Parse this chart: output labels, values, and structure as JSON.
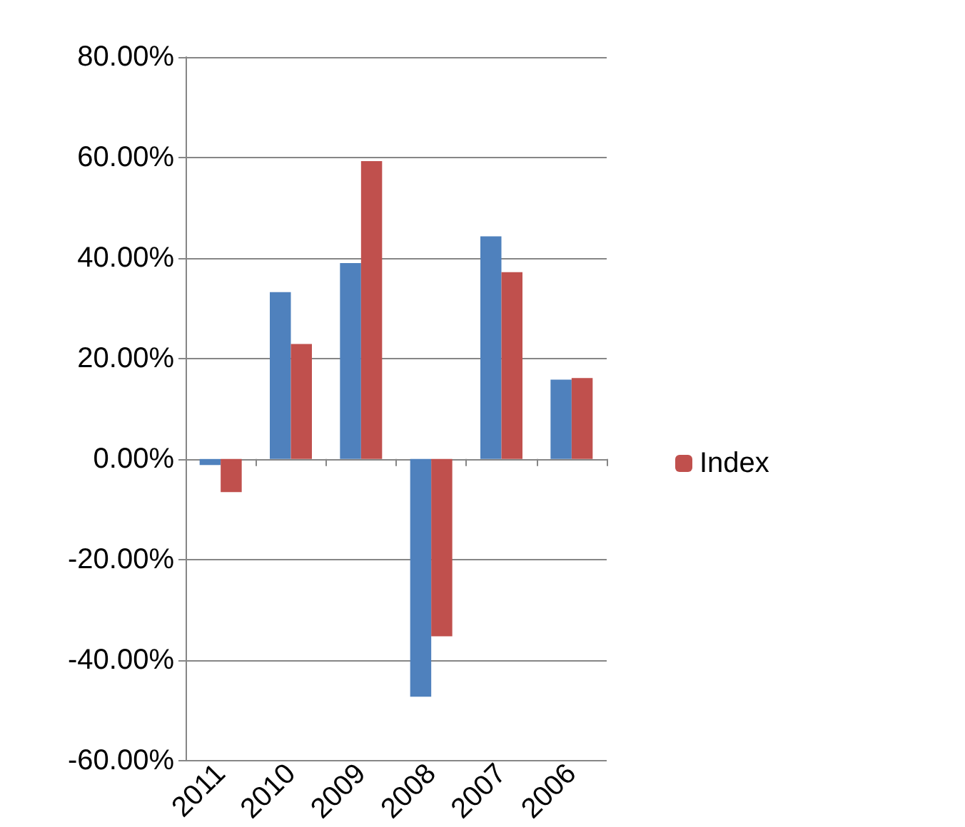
{
  "chart_data": {
    "type": "bar",
    "categories": [
      "2011",
      "2010",
      "2009",
      "2008",
      "2007",
      "2006"
    ],
    "series": [
      {
        "color": "#4f81bd",
        "values": [
          -1.2,
          33.2,
          39.0,
          -47.3,
          44.3,
          15.8
        ]
      },
      {
        "name": "Index",
        "color": "#c0504d",
        "values": [
          -6.6,
          22.9,
          59.3,
          -35.3,
          37.2,
          16.1
        ]
      }
    ],
    "ylim": [
      -60,
      80
    ],
    "yticks": [
      {
        "value": -60,
        "label": "-60.00%"
      },
      {
        "value": -40,
        "label": "-40.00%"
      },
      {
        "value": -20,
        "label": "-20.00%"
      },
      {
        "value": 0,
        "label": "0.00%"
      },
      {
        "value": 20,
        "label": "20.00%"
      },
      {
        "value": 40,
        "label": "40.00%"
      },
      {
        "value": 60,
        "label": "60.00%"
      },
      {
        "value": 80,
        "label": "80.00%"
      }
    ],
    "grid": "y",
    "legend": "right"
  }
}
